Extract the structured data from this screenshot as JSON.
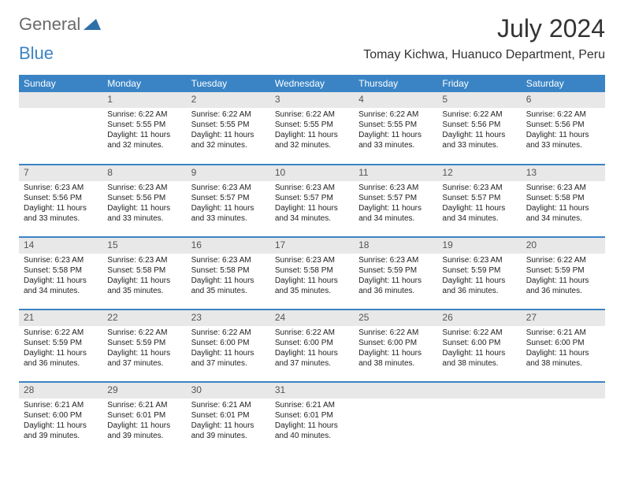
{
  "logo": {
    "part1": "General",
    "part2": "Blue"
  },
  "header": {
    "title": "July 2024",
    "location": "Tomay Kichwa, Huanuco Department, Peru"
  },
  "colors": {
    "accent": "#3a84c5",
    "header_bg": "#3a84c5",
    "header_text": "#ffffff",
    "daynum_bg": "#e8e8e8",
    "daynum_text": "#555555",
    "body_text": "#222222",
    "logo_gray": "#6a6a6a"
  },
  "days_of_week": [
    "Sunday",
    "Monday",
    "Tuesday",
    "Wednesday",
    "Thursday",
    "Friday",
    "Saturday"
  ],
  "weeks": [
    [
      null,
      {
        "n": "1",
        "sr": "Sunrise: 6:22 AM",
        "ss": "Sunset: 5:55 PM",
        "dl": "Daylight: 11 hours and 32 minutes."
      },
      {
        "n": "2",
        "sr": "Sunrise: 6:22 AM",
        "ss": "Sunset: 5:55 PM",
        "dl": "Daylight: 11 hours and 32 minutes."
      },
      {
        "n": "3",
        "sr": "Sunrise: 6:22 AM",
        "ss": "Sunset: 5:55 PM",
        "dl": "Daylight: 11 hours and 32 minutes."
      },
      {
        "n": "4",
        "sr": "Sunrise: 6:22 AM",
        "ss": "Sunset: 5:55 PM",
        "dl": "Daylight: 11 hours and 33 minutes."
      },
      {
        "n": "5",
        "sr": "Sunrise: 6:22 AM",
        "ss": "Sunset: 5:56 PM",
        "dl": "Daylight: 11 hours and 33 minutes."
      },
      {
        "n": "6",
        "sr": "Sunrise: 6:22 AM",
        "ss": "Sunset: 5:56 PM",
        "dl": "Daylight: 11 hours and 33 minutes."
      }
    ],
    [
      {
        "n": "7",
        "sr": "Sunrise: 6:23 AM",
        "ss": "Sunset: 5:56 PM",
        "dl": "Daylight: 11 hours and 33 minutes."
      },
      {
        "n": "8",
        "sr": "Sunrise: 6:23 AM",
        "ss": "Sunset: 5:56 PM",
        "dl": "Daylight: 11 hours and 33 minutes."
      },
      {
        "n": "9",
        "sr": "Sunrise: 6:23 AM",
        "ss": "Sunset: 5:57 PM",
        "dl": "Daylight: 11 hours and 33 minutes."
      },
      {
        "n": "10",
        "sr": "Sunrise: 6:23 AM",
        "ss": "Sunset: 5:57 PM",
        "dl": "Daylight: 11 hours and 34 minutes."
      },
      {
        "n": "11",
        "sr": "Sunrise: 6:23 AM",
        "ss": "Sunset: 5:57 PM",
        "dl": "Daylight: 11 hours and 34 minutes."
      },
      {
        "n": "12",
        "sr": "Sunrise: 6:23 AM",
        "ss": "Sunset: 5:57 PM",
        "dl": "Daylight: 11 hours and 34 minutes."
      },
      {
        "n": "13",
        "sr": "Sunrise: 6:23 AM",
        "ss": "Sunset: 5:58 PM",
        "dl": "Daylight: 11 hours and 34 minutes."
      }
    ],
    [
      {
        "n": "14",
        "sr": "Sunrise: 6:23 AM",
        "ss": "Sunset: 5:58 PM",
        "dl": "Daylight: 11 hours and 34 minutes."
      },
      {
        "n": "15",
        "sr": "Sunrise: 6:23 AM",
        "ss": "Sunset: 5:58 PM",
        "dl": "Daylight: 11 hours and 35 minutes."
      },
      {
        "n": "16",
        "sr": "Sunrise: 6:23 AM",
        "ss": "Sunset: 5:58 PM",
        "dl": "Daylight: 11 hours and 35 minutes."
      },
      {
        "n": "17",
        "sr": "Sunrise: 6:23 AM",
        "ss": "Sunset: 5:58 PM",
        "dl": "Daylight: 11 hours and 35 minutes."
      },
      {
        "n": "18",
        "sr": "Sunrise: 6:23 AM",
        "ss": "Sunset: 5:59 PM",
        "dl": "Daylight: 11 hours and 36 minutes."
      },
      {
        "n": "19",
        "sr": "Sunrise: 6:23 AM",
        "ss": "Sunset: 5:59 PM",
        "dl": "Daylight: 11 hours and 36 minutes."
      },
      {
        "n": "20",
        "sr": "Sunrise: 6:22 AM",
        "ss": "Sunset: 5:59 PM",
        "dl": "Daylight: 11 hours and 36 minutes."
      }
    ],
    [
      {
        "n": "21",
        "sr": "Sunrise: 6:22 AM",
        "ss": "Sunset: 5:59 PM",
        "dl": "Daylight: 11 hours and 36 minutes."
      },
      {
        "n": "22",
        "sr": "Sunrise: 6:22 AM",
        "ss": "Sunset: 5:59 PM",
        "dl": "Daylight: 11 hours and 37 minutes."
      },
      {
        "n": "23",
        "sr": "Sunrise: 6:22 AM",
        "ss": "Sunset: 6:00 PM",
        "dl": "Daylight: 11 hours and 37 minutes."
      },
      {
        "n": "24",
        "sr": "Sunrise: 6:22 AM",
        "ss": "Sunset: 6:00 PM",
        "dl": "Daylight: 11 hours and 37 minutes."
      },
      {
        "n": "25",
        "sr": "Sunrise: 6:22 AM",
        "ss": "Sunset: 6:00 PM",
        "dl": "Daylight: 11 hours and 38 minutes."
      },
      {
        "n": "26",
        "sr": "Sunrise: 6:22 AM",
        "ss": "Sunset: 6:00 PM",
        "dl": "Daylight: 11 hours and 38 minutes."
      },
      {
        "n": "27",
        "sr": "Sunrise: 6:21 AM",
        "ss": "Sunset: 6:00 PM",
        "dl": "Daylight: 11 hours and 38 minutes."
      }
    ],
    [
      {
        "n": "28",
        "sr": "Sunrise: 6:21 AM",
        "ss": "Sunset: 6:00 PM",
        "dl": "Daylight: 11 hours and 39 minutes."
      },
      {
        "n": "29",
        "sr": "Sunrise: 6:21 AM",
        "ss": "Sunset: 6:01 PM",
        "dl": "Daylight: 11 hours and 39 minutes."
      },
      {
        "n": "30",
        "sr": "Sunrise: 6:21 AM",
        "ss": "Sunset: 6:01 PM",
        "dl": "Daylight: 11 hours and 39 minutes."
      },
      {
        "n": "31",
        "sr": "Sunrise: 6:21 AM",
        "ss": "Sunset: 6:01 PM",
        "dl": "Daylight: 11 hours and 40 minutes."
      },
      null,
      null,
      null
    ]
  ]
}
